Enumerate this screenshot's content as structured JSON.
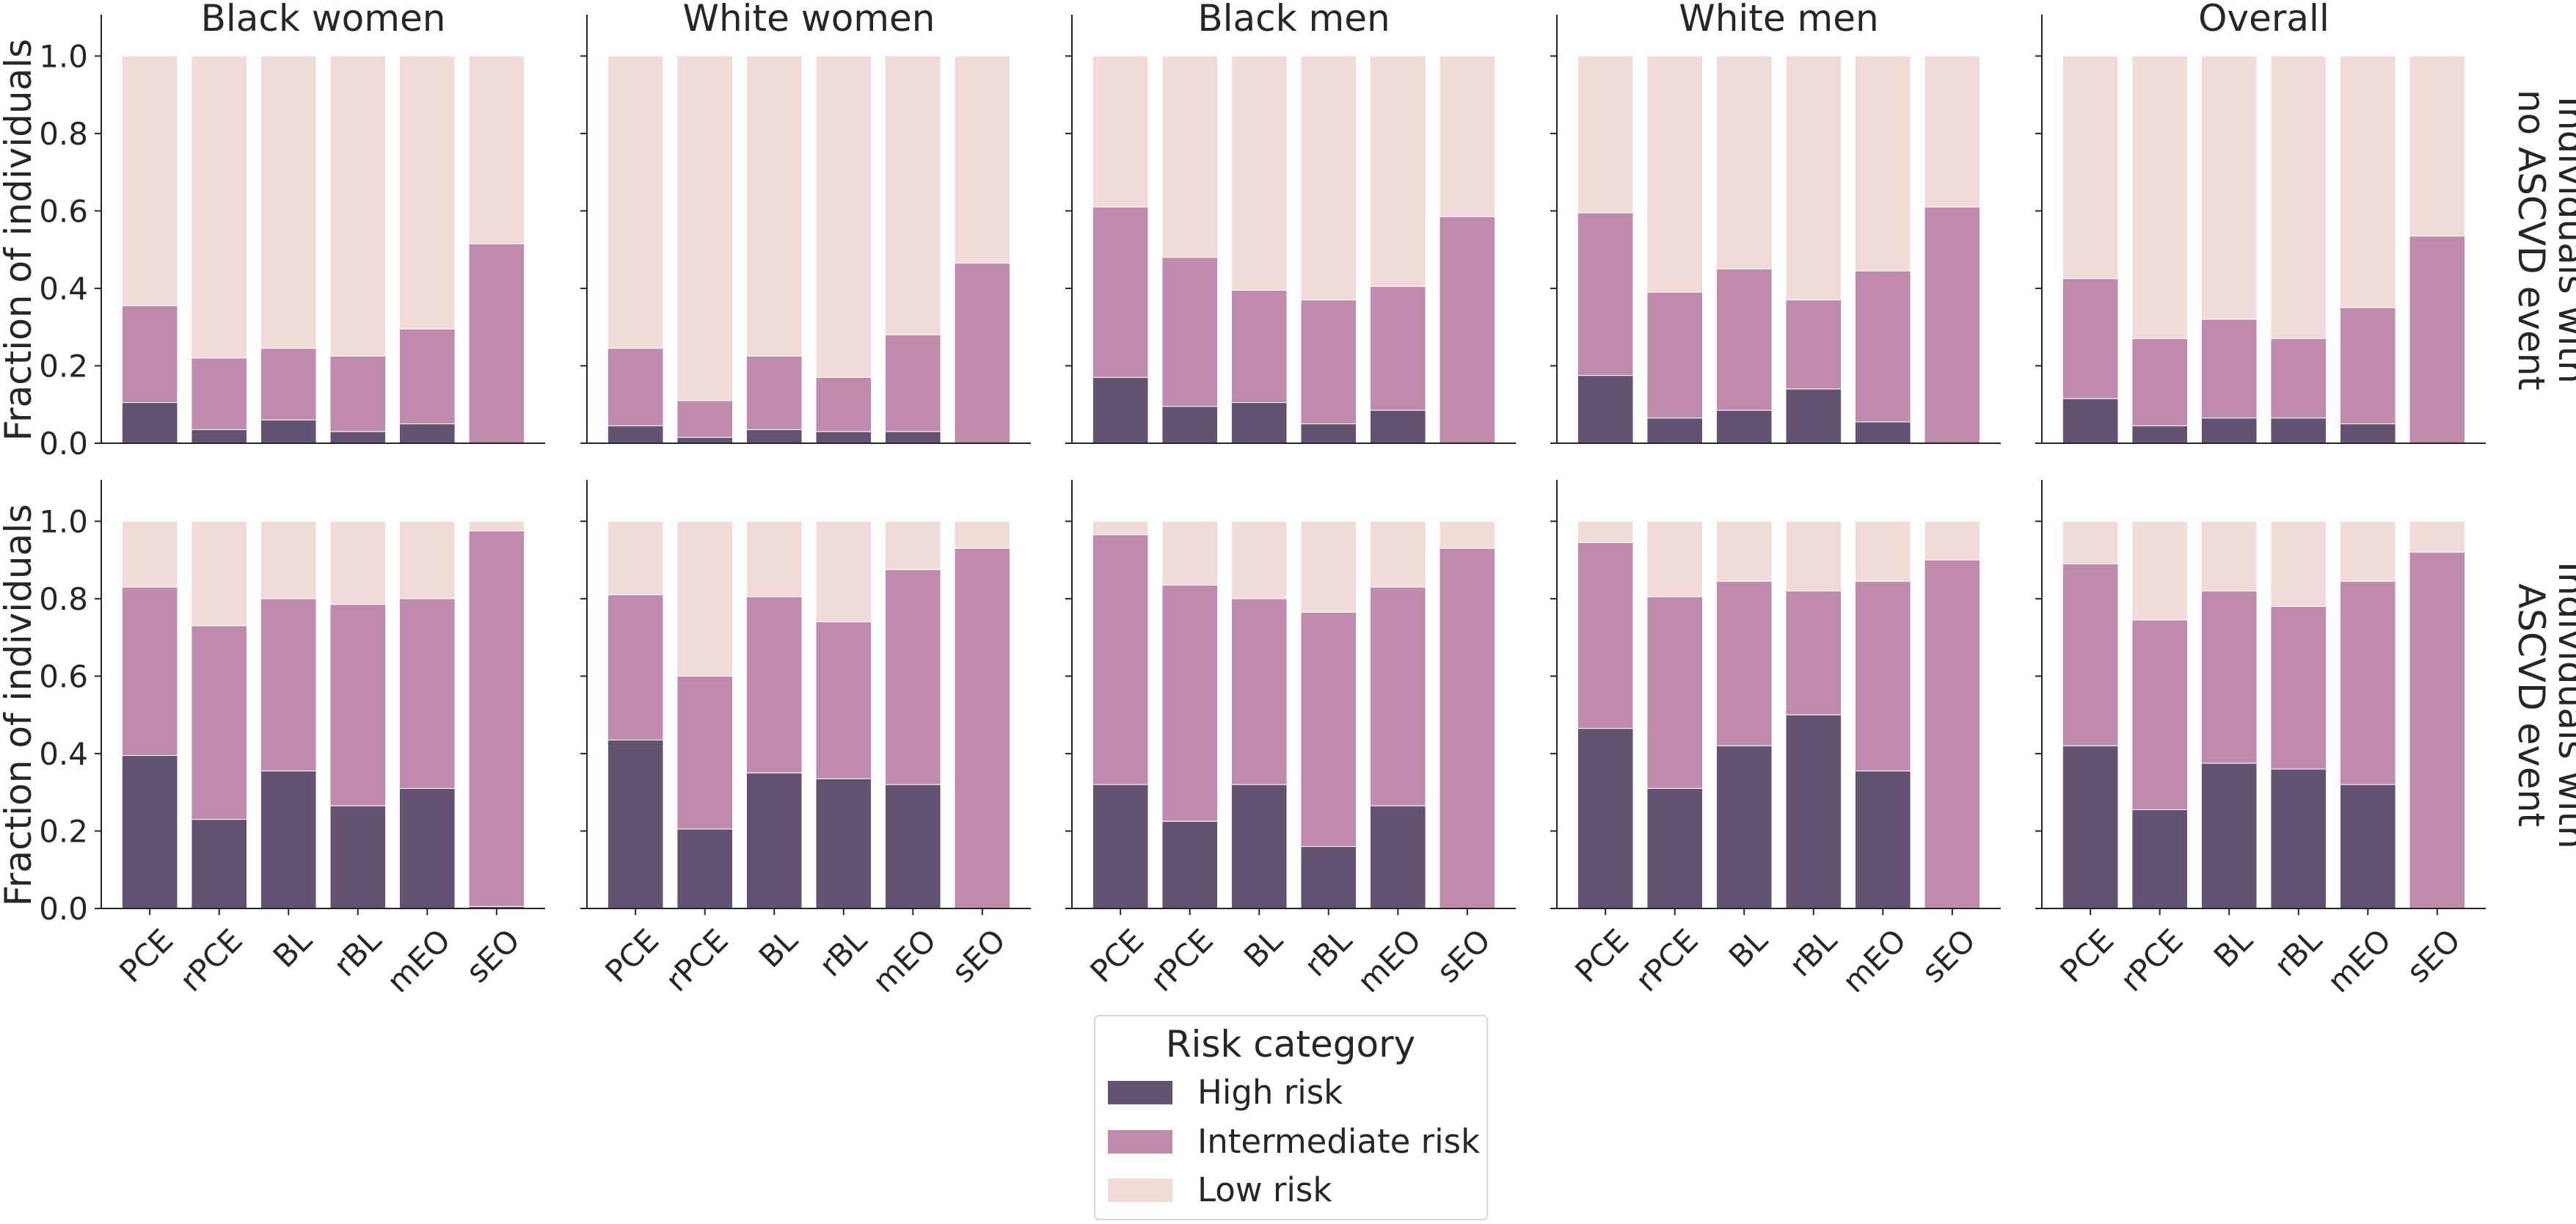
{
  "chart_data": {
    "type": "bar",
    "stacked": true,
    "layout": "facet-grid 2 rows x 5 columns, shared axes",
    "categories": [
      "PCE",
      "rPCE",
      "BL",
      "rBL",
      "mEO",
      "sEO"
    ],
    "column_titles": [
      "Black women",
      "White women",
      "Black men",
      "White men",
      "Overall"
    ],
    "row_labels": [
      [
        "Individuals with",
        "no ASCVD event"
      ],
      [
        "Individuals with",
        "ASCVD event"
      ]
    ],
    "ylabel": "Fraction of individuals",
    "ylim": [
      0,
      1.05
    ],
    "yticks": [
      "0.0",
      "0.2",
      "0.4",
      "0.6",
      "0.8",
      "1.0"
    ],
    "ytick_values": [
      0,
      0.2,
      0.4,
      0.6,
      0.8,
      1.0
    ],
    "grid": false,
    "legend": {
      "title": "Risk category",
      "placement": "bottom-center",
      "entries": [
        "High risk",
        "Intermediate risk",
        "Low risk"
      ]
    },
    "series_colors": {
      "High risk": "#625370",
      "Intermediate risk": "#bf8aab",
      "Low risk": "#f0dbd8"
    },
    "note": "values are cumulative fractions: high = top of High-risk segment, inter = top of Intermediate-risk segment; Low risk fills to 1.0",
    "panels": [
      [
        {
          "high": [
            0.105,
            0.035,
            0.06,
            0.03,
            0.05,
            0.0
          ],
          "inter": [
            0.355,
            0.22,
            0.245,
            0.225,
            0.295,
            0.515
          ]
        },
        {
          "high": [
            0.045,
            0.015,
            0.035,
            0.03,
            0.03,
            0.0
          ],
          "inter": [
            0.245,
            0.11,
            0.225,
            0.17,
            0.28,
            0.465
          ]
        },
        {
          "high": [
            0.17,
            0.095,
            0.105,
            0.05,
            0.085,
            0.0
          ],
          "inter": [
            0.61,
            0.48,
            0.395,
            0.37,
            0.405,
            0.585
          ]
        },
        {
          "high": [
            0.175,
            0.065,
            0.085,
            0.14,
            0.055,
            0.0
          ],
          "inter": [
            0.595,
            0.39,
            0.45,
            0.37,
            0.445,
            0.61
          ]
        },
        {
          "high": [
            0.115,
            0.045,
            0.065,
            0.065,
            0.05,
            0.0
          ],
          "inter": [
            0.425,
            0.27,
            0.32,
            0.27,
            0.35,
            0.535
          ]
        }
      ],
      [
        {
          "high": [
            0.395,
            0.23,
            0.355,
            0.265,
            0.31,
            0.005
          ],
          "inter": [
            0.83,
            0.73,
            0.8,
            0.785,
            0.8,
            0.975
          ]
        },
        {
          "high": [
            0.435,
            0.205,
            0.35,
            0.335,
            0.32,
            0.0
          ],
          "inter": [
            0.81,
            0.6,
            0.805,
            0.74,
            0.875,
            0.93
          ]
        },
        {
          "high": [
            0.32,
            0.225,
            0.32,
            0.16,
            0.265,
            0.0
          ],
          "inter": [
            0.965,
            0.835,
            0.8,
            0.765,
            0.83,
            0.93
          ]
        },
        {
          "high": [
            0.465,
            0.31,
            0.42,
            0.5,
            0.355,
            0.0
          ],
          "inter": [
            0.945,
            0.805,
            0.845,
            0.82,
            0.845,
            0.9
          ]
        },
        {
          "high": [
            0.42,
            0.255,
            0.375,
            0.36,
            0.32,
            0.0
          ],
          "inter": [
            0.89,
            0.745,
            0.82,
            0.78,
            0.845,
            0.92
          ]
        }
      ]
    ]
  }
}
